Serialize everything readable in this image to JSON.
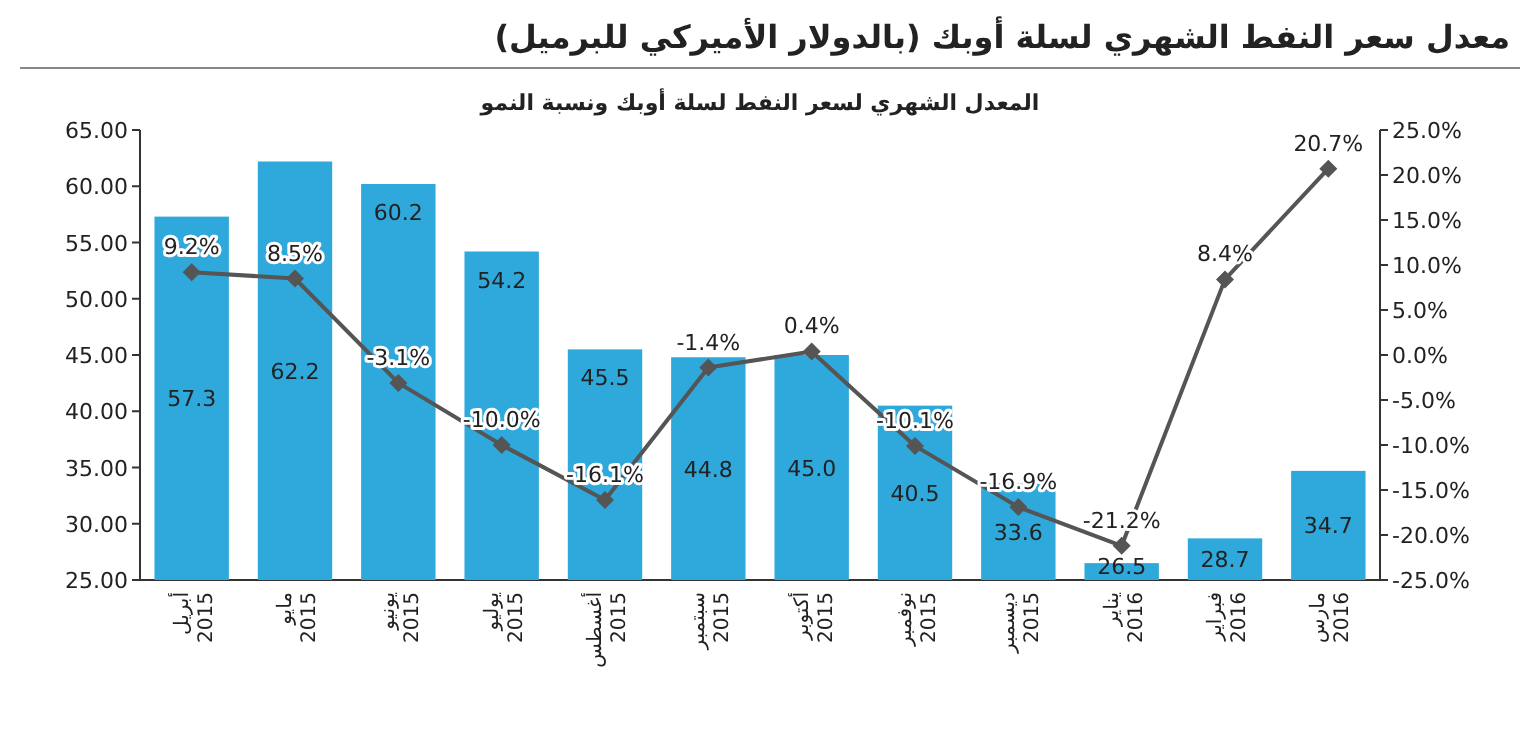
{
  "chart_data": {
    "type": "bar",
    "title": "معدل سعر النفط الشهري لسلة أوبك (بالدولار الأميركي للبرميل)",
    "subtitle": "المعدل الشهري لسعر النفط لسلة أوبك ونسبة النمو",
    "categories": [
      "أبريل 2015",
      "مايو 2015",
      "يونيو 2015",
      "يوليو 2015",
      "أغسطس 2015",
      "سبتمبر 2015",
      "أكتوبر 2015",
      "نوفمبر 2015",
      "ديسمبر 2015",
      "يناير 2016",
      "فبراير 2016",
      "مارس 2016"
    ],
    "series": [
      {
        "color": "#2fa8dc",
        "values": [
          57.3,
          62.2,
          60.2,
          54.2,
          45.5,
          44.8,
          45.0,
          40.5,
          33.6,
          26.5,
          28.7,
          34.7
        ],
        "value_labels": [
          "57.3",
          "62.2",
          "60.2",
          "54.2",
          "45.5",
          "44.8",
          "45.0",
          "40.5",
          "33.6",
          "26.5",
          "28.7",
          "34.7"
        ]
      },
      {
        "type": "line",
        "axis": "y2",
        "color": "#555555",
        "marker": "diamond",
        "line_style": "solid",
        "values": [
          9.2,
          8.5,
          -3.1,
          -10.0,
          -16.1,
          -1.4,
          0.4,
          -10.1,
          -16.9,
          -21.2,
          8.4,
          20.7
        ],
        "value_labels": [
          "9.2%",
          "8.5%",
          "-3.1%",
          "-10.0%",
          "-16.1%",
          "-1.4%",
          "0.4%",
          "-10.1%",
          "-16.9%",
          "-21.2%",
          "8.4%",
          "20.7%"
        ]
      }
    ],
    "ylim": [
      25,
      65
    ],
    "yticks": [
      {
        "value": 25,
        "label": "25.00"
      },
      {
        "value": 30,
        "label": "30.00"
      },
      {
        "value": 35,
        "label": "35.00"
      },
      {
        "value": 40,
        "label": "40.00"
      },
      {
        "value": 45,
        "label": "45.00"
      },
      {
        "value": 50,
        "label": "50.00"
      },
      {
        "value": 55,
        "label": "55.00"
      },
      {
        "value": 60,
        "label": "60.00"
      },
      {
        "value": 65,
        "label": "65.00"
      }
    ],
    "y2lim": [
      -25,
      25
    ],
    "y2ticks": [
      {
        "value": -25,
        "label": "-25.0%"
      },
      {
        "value": -20,
        "label": "-20.0%"
      },
      {
        "value": -15,
        "label": "-15.0%"
      },
      {
        "value": -10,
        "label": "-10.0%"
      },
      {
        "value": -5,
        "label": "-5.0%"
      },
      {
        "value": 0,
        "label": "0.0%"
      },
      {
        "value": 5,
        "label": "5.0%"
      },
      {
        "value": 10,
        "label": "10.0%"
      },
      {
        "value": 15,
        "label": "15.0%"
      },
      {
        "value": 20,
        "label": "20.0%"
      },
      {
        "value": 25,
        "label": "25.0%"
      }
    ],
    "grid": false
  }
}
